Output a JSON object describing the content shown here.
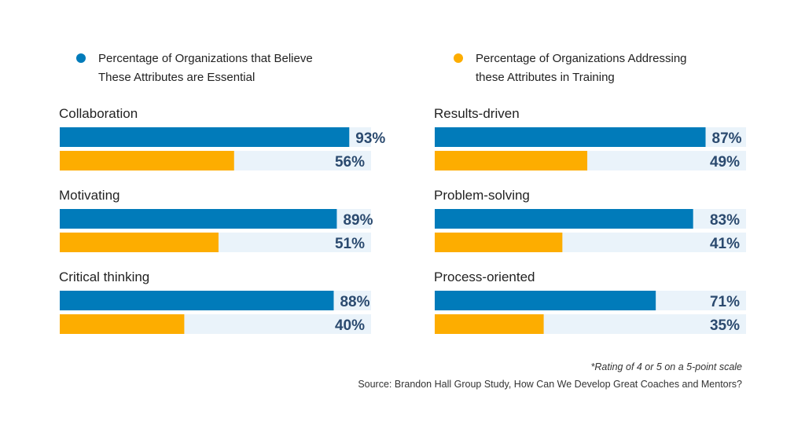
{
  "chart_data": {
    "type": "bar",
    "orientation": "horizontal",
    "xlim": [
      0,
      100
    ],
    "unit": "%",
    "series": [
      {
        "name": "Percentage of Organizations that Believe These Attributes are Essential",
        "legend_lines": [
          "Percentage of Organizations that Believe",
          "These Attributes are Essential"
        ],
        "color": "#017bba"
      },
      {
        "name": "Percentage of Organizations Addressing these Attributes in Training",
        "legend_lines": [
          "Percentage of Organizations Addressing",
          "these Attributes in Training"
        ],
        "color": "#fdad00"
      }
    ],
    "track_color": "#eaf3fa",
    "value_label_color": "#2b4a6f",
    "categories": [
      "Collaboration",
      "Motivating",
      "Critical thinking",
      "Results-driven",
      "Problem-solving",
      "Process-oriented"
    ],
    "values": [
      [
        93,
        56
      ],
      [
        89,
        51
      ],
      [
        88,
        40
      ],
      [
        87,
        49
      ],
      [
        83,
        41
      ],
      [
        71,
        35
      ]
    ],
    "value_labels": [
      [
        "93%",
        "56%"
      ],
      [
        "89%",
        "51%"
      ],
      [
        "88%",
        "40%"
      ],
      [
        "87%",
        "49%"
      ],
      [
        "83%",
        "41%"
      ],
      [
        "71%",
        "35%"
      ]
    ],
    "footnotes": [
      "*Rating of 4 or 5 on a 5-point scale",
      "Source: Brandon Hall Group Study, How Can We Develop Great Coaches and Mentors?"
    ]
  }
}
